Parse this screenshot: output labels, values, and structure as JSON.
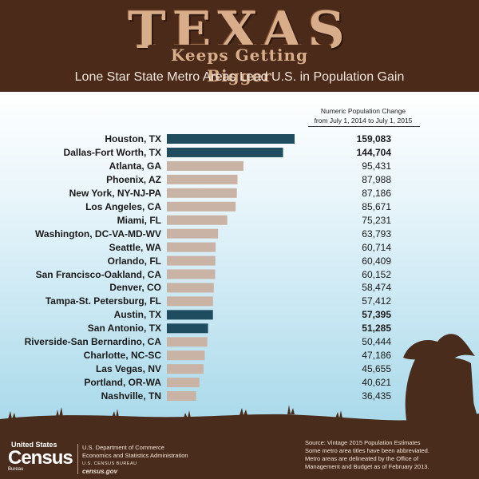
{
  "header": {
    "title": "TEXAS",
    "subtitle": "Keeps Getting Bigger",
    "headline": "Lone Star State Metro Areas Lead U.S. in Population Gain"
  },
  "column_header": {
    "line1": "Numeric Population Change",
    "line2": "from July 1, 2014 to July 1, 2015"
  },
  "chart_data": {
    "type": "bar",
    "orientation": "horizontal",
    "categories": [
      "Houston, TX",
      "Dallas-Fort Worth, TX",
      "Atlanta, GA",
      "Phoenix, AZ",
      "New York, NY-NJ-PA",
      "Los Angeles, CA",
      "Miami, FL",
      "Washington, DC-VA-MD-WV",
      "Seattle, WA",
      "Orlando, FL",
      "San Francisco-Oakland, CA",
      "Denver, CO",
      "Tampa-St. Petersburg, FL",
      "Austin, TX",
      "San Antonio, TX",
      "Riverside-San Bernardino, CA",
      "Charlotte, NC-SC",
      "Las Vegas, NV",
      "Portland, OR-WA",
      "Nashville, TN"
    ],
    "values": [
      159083,
      144704,
      95431,
      87988,
      87186,
      85671,
      75231,
      63793,
      60714,
      60409,
      60152,
      58474,
      57412,
      57395,
      51285,
      50444,
      47186,
      45655,
      40621,
      36435
    ],
    "value_labels": [
      "159,083",
      "144,704",
      "95,431",
      "87,988",
      "87,186",
      "85,671",
      "75,231",
      "63,793",
      "60,714",
      "60,409",
      "60,152",
      "58,474",
      "57,412",
      "57,395",
      "51,285",
      "50,444",
      "47,186",
      "45,655",
      "40,621",
      "36,435"
    ],
    "highlight": [
      true,
      true,
      false,
      false,
      false,
      false,
      false,
      false,
      false,
      false,
      false,
      false,
      false,
      true,
      true,
      false,
      false,
      false,
      false,
      false
    ],
    "colors": {
      "highlight": "#1f4d5f",
      "default": "#c9b3a5"
    }
  },
  "footer": {
    "logo_top": "United States",
    "logo": "Census",
    "logo_bureau": "Bureau",
    "dept_line1": "U.S. Department of Commerce",
    "dept_line2": "Economics and Statistics Administration",
    "dept_line3": "U.S. CENSUS BUREAU",
    "dept_url": "census.gov",
    "source_line1": "Source: Vintage 2015 Population Estimates",
    "source_line2": "Some metro area titles have been abbreviated.",
    "source_line3": "Metro areas are delineated by the Office of",
    "source_line4": "Management and Budget as of February 2013."
  },
  "colors": {
    "header_bg": "#4b2a1a",
    "title": "#d8ad8a",
    "ground": "#4a2c1c"
  }
}
